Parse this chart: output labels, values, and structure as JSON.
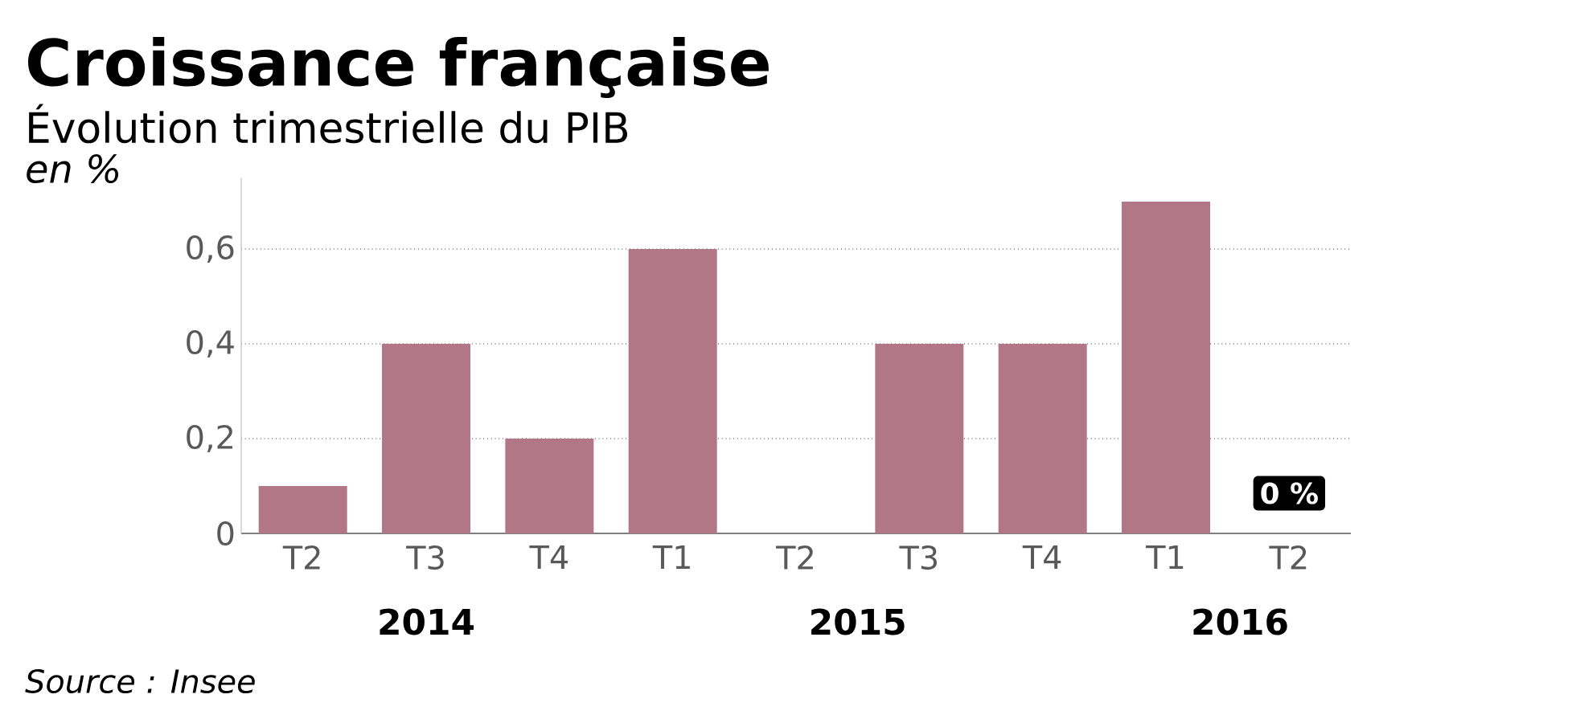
{
  "chart_data": {
    "type": "bar",
    "title": "Croissance française",
    "subtitle": "Évolution trimestrielle du PIB",
    "ylabel": "en %",
    "categories": [
      "T2",
      "T3",
      "T4",
      "T1",
      "T2",
      "T3",
      "T4",
      "T1",
      "T2"
    ],
    "values": [
      0.1,
      0.4,
      0.2,
      0.6,
      0,
      0.4,
      0.4,
      0.7,
      0
    ],
    "value_labels": [
      null,
      null,
      null,
      null,
      null,
      null,
      null,
      null,
      "0 %"
    ],
    "color": "#b27787",
    "ylim": [
      0,
      0.75
    ],
    "yticks": [
      0,
      {
        "value": 0.2,
        "label": "0,2"
      },
      {
        "value": 0.4,
        "label": "0,4"
      },
      {
        "value": 0.6,
        "label": "0,6"
      }
    ],
    "grid": "y",
    "annotations": [
      "2014",
      "2015",
      "2016",
      "Source : Insee"
    ]
  }
}
